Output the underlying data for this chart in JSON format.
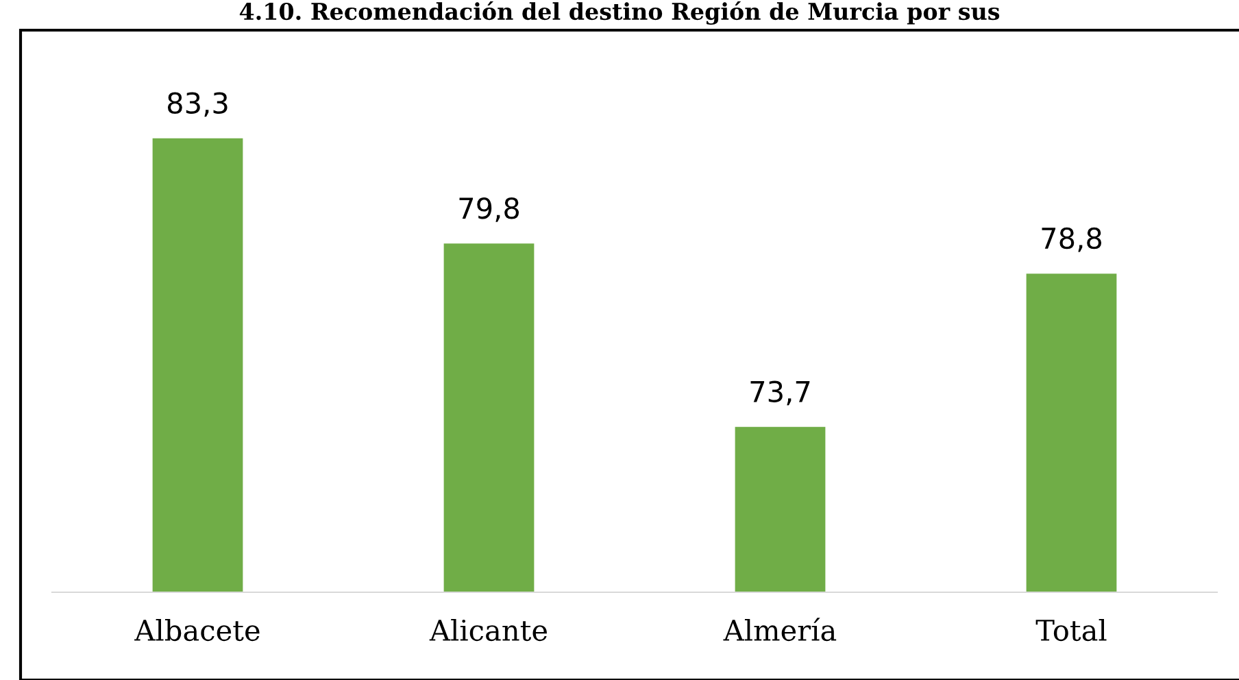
{
  "chart_data": {
    "type": "bar",
    "title": "4.10. Recomendación del destino Región de Murcia por sus",
    "categories": [
      "Albacete",
      "Alicante",
      "Almería",
      "Total"
    ],
    "values": [
      83.3,
      79.8,
      73.7,
      78.8
    ],
    "value_labels": [
      "83,3",
      "79,8",
      "73,7",
      "78,8"
    ],
    "color": "#70ad47",
    "ylim": [
      68.2,
      86.9
    ],
    "tick_labels": "x",
    "grid": false,
    "legend": false
  }
}
